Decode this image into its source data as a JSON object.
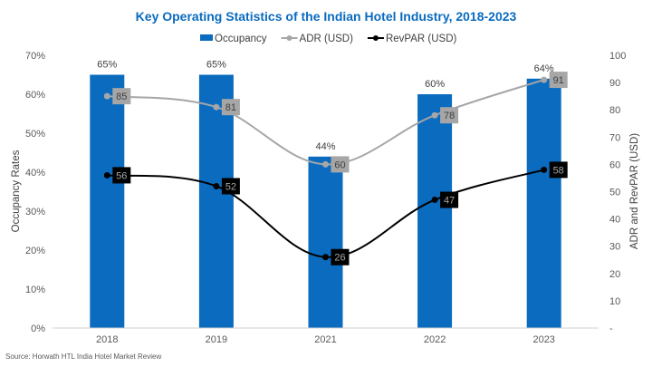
{
  "chart_data": {
    "type": "bar",
    "title": "Key Operating Statistics of the Indian Hotel Industry, 2018-2023",
    "categories": [
      "2018",
      "2019",
      "2021",
      "2022",
      "2023"
    ],
    "series": [
      {
        "name": "Occupancy",
        "kind": "bar",
        "axis": "left",
        "values": [
          0.65,
          0.65,
          0.44,
          0.6,
          0.64
        ],
        "labels": [
          "65%",
          "65%",
          "44%",
          "60%",
          "64%"
        ],
        "color": "#0a6bbf"
      },
      {
        "name": "ADR (USD)",
        "kind": "line",
        "axis": "right",
        "values": [
          85,
          81,
          60,
          78,
          91
        ],
        "color": "#a6a6a6"
      },
      {
        "name": "RevPAR (USD)",
        "kind": "line",
        "axis": "right",
        "values": [
          56,
          52,
          26,
          47,
          58
        ],
        "color": "#000000"
      }
    ],
    "left_axis": {
      "label": "Occupancy Rates",
      "range": [
        0,
        0.7
      ],
      "ticks": [
        "0%",
        "10%",
        "20%",
        "30%",
        "40%",
        "50%",
        "60%",
        "70%"
      ]
    },
    "right_axis": {
      "label": "ADR and RevPAR (USD)",
      "range": [
        0,
        100
      ],
      "ticks": [
        "-",
        "10",
        "20",
        "30",
        "40",
        "50",
        "60",
        "70",
        "80",
        "90",
        "100"
      ]
    },
    "legend": {
      "placement": "top-center",
      "entries": [
        "Occupancy",
        "ADR (USD)",
        "RevPAR (USD)"
      ]
    },
    "grid": false,
    "source": "Source: Horwath HTL India Hotel Market Review"
  }
}
